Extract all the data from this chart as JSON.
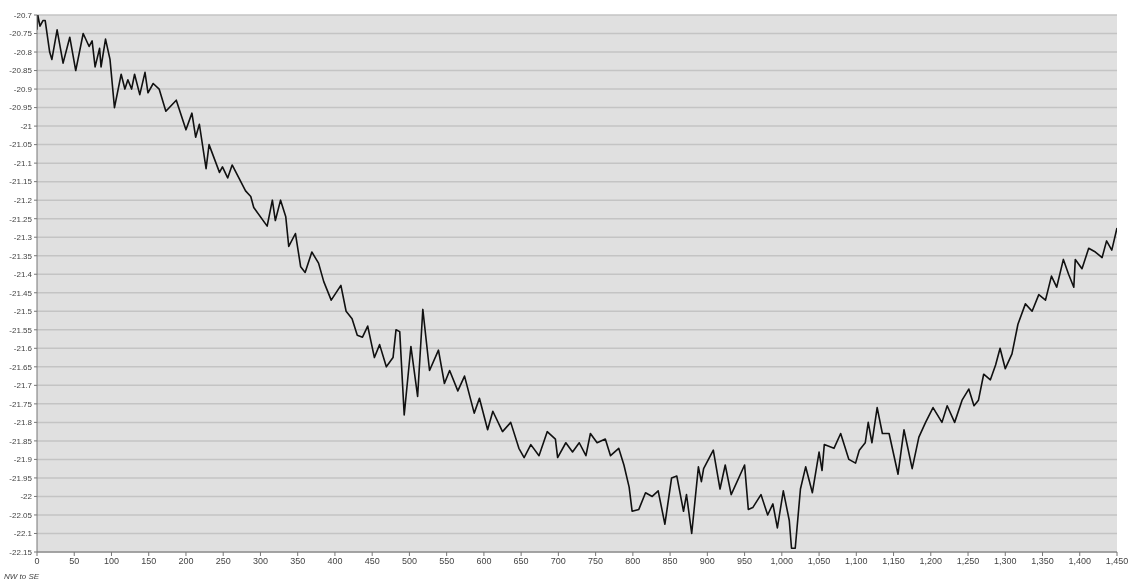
{
  "chart_data": {
    "type": "line",
    "xlabel": "NW to SE",
    "x": [
      0,
      1,
      4,
      8,
      11,
      17,
      20,
      27,
      35,
      44,
      52,
      62,
      70,
      74,
      78,
      84,
      86,
      92,
      98,
      104,
      113,
      118,
      122,
      127,
      131,
      138,
      145,
      149,
      156,
      164,
      173,
      187,
      200,
      208,
      213,
      218,
      227,
      231,
      245,
      249,
      256,
      262,
      280,
      287,
      291,
      309,
      316,
      320,
      327,
      334,
      338,
      347,
      354,
      360,
      369,
      378,
      385,
      395,
      408,
      415,
      423,
      430,
      437,
      444,
      453,
      460,
      469,
      478,
      482,
      487,
      493,
      502,
      511,
      518,
      527,
      539,
      547,
      554,
      565,
      574,
      587,
      594,
      605,
      612,
      625,
      636,
      647,
      654,
      663,
      674,
      685,
      696,
      699,
      710,
      719,
      728,
      737,
      743,
      752,
      763,
      770,
      781,
      788,
      795,
      799,
      808,
      817,
      826,
      834,
      843,
      852,
      859,
      868,
      872,
      879,
      888,
      892,
      895,
      908,
      917,
      924,
      932,
      950,
      955,
      961,
      972,
      981,
      988,
      994,
      1002,
      1010,
      1013,
      1018,
      1025,
      1032,
      1041,
      1050,
      1054,
      1057,
      1070,
      1079,
      1090,
      1099,
      1104,
      1112,
      1116,
      1121,
      1128,
      1135,
      1144,
      1156,
      1164,
      1175,
      1184,
      1193,
      1203,
      1215,
      1222,
      1232,
      1242,
      1251,
      1258,
      1264,
      1271,
      1280,
      1287,
      1293,
      1300,
      1309,
      1317,
      1327,
      1336,
      1345,
      1354,
      1362,
      1369,
      1378,
      1385,
      1392,
      1394,
      1403,
      1412,
      1421,
      1430,
      1436,
      1443,
      1450
    ],
    "series": [
      {
        "color": "#111111",
        "values": [
          -20.74,
          -20.7,
          -20.73,
          -20.715,
          -20.715,
          -20.8,
          -20.82,
          -20.74,
          -20.83,
          -20.76,
          -20.85,
          -20.75,
          -20.785,
          -20.77,
          -20.84,
          -20.79,
          -20.84,
          -20.765,
          -20.82,
          -20.95,
          -20.86,
          -20.9,
          -20.875,
          -20.9,
          -20.86,
          -20.915,
          -20.855,
          -20.91,
          -20.885,
          -20.9,
          -20.96,
          -20.93,
          -21.01,
          -20.965,
          -21.03,
          -20.995,
          -21.115,
          -21.05,
          -21.125,
          -21.11,
          -21.14,
          -21.105,
          -21.175,
          -21.19,
          -21.22,
          -21.27,
          -21.2,
          -21.255,
          -21.2,
          -21.245,
          -21.325,
          -21.29,
          -21.38,
          -21.395,
          -21.34,
          -21.37,
          -21.42,
          -21.47,
          -21.43,
          -21.5,
          -21.52,
          -21.565,
          -21.57,
          -21.54,
          -21.625,
          -21.59,
          -21.65,
          -21.625,
          -21.55,
          -21.555,
          -21.78,
          -21.595,
          -21.73,
          -21.495,
          -21.66,
          -21.605,
          -21.695,
          -21.66,
          -21.715,
          -21.675,
          -21.775,
          -21.735,
          -21.82,
          -21.77,
          -21.825,
          -21.8,
          -21.87,
          -21.895,
          -21.86,
          -21.89,
          -21.825,
          -21.845,
          -21.895,
          -21.855,
          -21.88,
          -21.855,
          -21.89,
          -21.83,
          -21.855,
          -21.845,
          -21.89,
          -21.87,
          -21.915,
          -21.975,
          -22.04,
          -22.035,
          -21.99,
          -22.0,
          -21.985,
          -22.075,
          -21.95,
          -21.945,
          -22.04,
          -21.995,
          -22.1,
          -21.92,
          -21.96,
          -21.925,
          -21.875,
          -21.98,
          -21.915,
          -21.995,
          -21.915,
          -22.035,
          -22.03,
          -21.995,
          -22.05,
          -22.02,
          -22.085,
          -21.985,
          -22.065,
          -22.14,
          -22.14,
          -21.98,
          -21.92,
          -21.99,
          -21.88,
          -21.93,
          -21.86,
          -21.87,
          -21.83,
          -21.9,
          -21.91,
          -21.875,
          -21.855,
          -21.8,
          -21.855,
          -21.76,
          -21.83,
          -21.83,
          -21.94,
          -21.82,
          -21.925,
          -21.84,
          -21.8,
          -21.76,
          -21.8,
          -21.755,
          -21.8,
          -21.74,
          -21.71,
          -21.755,
          -21.74,
          -21.67,
          -21.685,
          -21.645,
          -21.6,
          -21.655,
          -21.615,
          -21.535,
          -21.48,
          -21.5,
          -21.455,
          -21.47,
          -21.405,
          -21.435,
          -21.36,
          -21.4,
          -21.435,
          -21.36,
          -21.385,
          -21.33,
          -21.34,
          -21.355,
          -21.31,
          -21.335,
          -21.275
        ]
      }
    ],
    "xlim": [
      0,
      1450
    ],
    "xticks": [
      0,
      50,
      100,
      150,
      200,
      250,
      300,
      350,
      400,
      450,
      500,
      550,
      600,
      650,
      700,
      750,
      800,
      850,
      900,
      950,
      {
        "value": 1000,
        "label": "1,000"
      },
      {
        "value": 1050,
        "label": "1,050"
      },
      {
        "value": 1100,
        "label": "1,100"
      },
      {
        "value": 1150,
        "label": "1,150"
      },
      {
        "value": 1200,
        "label": "1,200"
      },
      {
        "value": 1250,
        "label": "1,250"
      },
      {
        "value": 1300,
        "label": "1,300"
      },
      {
        "value": 1350,
        "label": "1,350"
      },
      {
        "value": 1400,
        "label": "1,400"
      },
      {
        "value": 1450,
        "label": "1,450"
      }
    ],
    "ylim": [
      -22.15,
      -20.7
    ],
    "yticks": [
      -20.7,
      -20.75,
      -20.8,
      -20.85,
      -20.9,
      -20.95,
      -21,
      -21.05,
      -21.1,
      -21.15,
      -21.2,
      -21.25,
      -21.3,
      -21.35,
      -21.4,
      -21.45,
      -21.5,
      -21.55,
      -21.6,
      -21.65,
      -21.7,
      -21.75,
      -21.8,
      -21.85,
      -21.9,
      -21.95,
      -22,
      -22.05,
      -22.1,
      -22.15
    ],
    "grid": "y",
    "legend": false,
    "marker": "none",
    "line_style": "solid"
  }
}
